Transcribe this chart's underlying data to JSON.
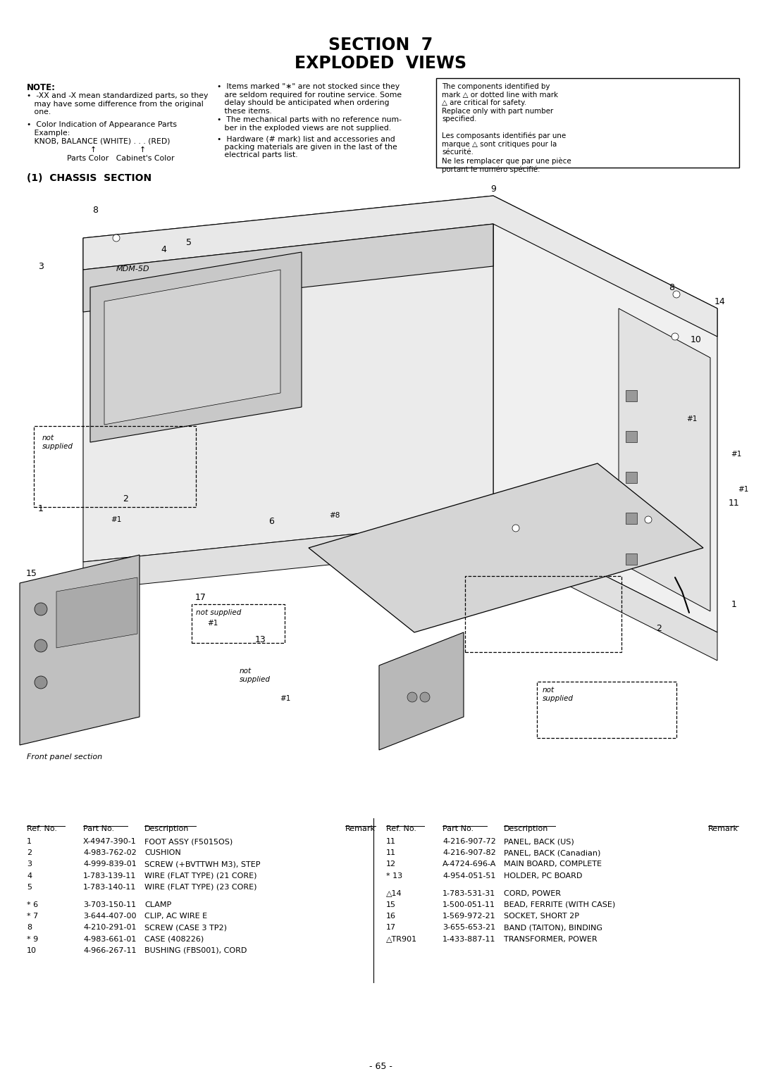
{
  "title_line1": "SECTION  7",
  "title_line2": "EXPLODED  VIEWS",
  "section_title": "(1)  CHASSIS  SECTION",
  "page_number": "- 65 -",
  "bg_color": "#ffffff",
  "text_color": "#000000",
  "parts_left": [
    [
      "1",
      "X-4947-390-1",
      "FOOT ASSY (F5015OS)",
      ""
    ],
    [
      "2",
      "4-983-762-02",
      "CUSHION",
      ""
    ],
    [
      "3",
      "4-999-839-01",
      "SCREW (+BVTTWH M3), STEP",
      ""
    ],
    [
      "4",
      "1-783-139-11",
      "WIRE (FLAT TYPE) (21 CORE)",
      ""
    ],
    [
      "5",
      "1-783-140-11",
      "WIRE (FLAT TYPE) (23 CORE)",
      ""
    ],
    [
      "",
      "",
      "",
      ""
    ],
    [
      "* 6",
      "3-703-150-11",
      "CLAMP",
      ""
    ],
    [
      "* 7",
      "3-644-407-00",
      "CLIP, AC WIRE E",
      ""
    ],
    [
      "8",
      "4-210-291-01",
      "SCREW (CASE 3 TP2)",
      ""
    ],
    [
      "* 9",
      "4-983-661-01",
      "CASE (408226)",
      ""
    ],
    [
      "10",
      "4-966-267-11",
      "BUSHING (FBS001), CORD",
      ""
    ]
  ],
  "parts_right": [
    [
      "11",
      "4-216-907-72",
      "PANEL, BACK (US)",
      ""
    ],
    [
      "11",
      "4-216-907-82",
      "PANEL, BACK (Canadian)",
      ""
    ],
    [
      "12",
      "A-4724-696-A",
      "MAIN BOARD, COMPLETE",
      ""
    ],
    [
      "* 13",
      "4-954-051-51",
      "HOLDER, PC BOARD",
      ""
    ],
    [
      "",
      "",
      "",
      ""
    ],
    [
      "△14",
      "1-783-531-31",
      "CORD, POWER",
      ""
    ],
    [
      "15",
      "1-500-051-11",
      "BEAD, FERRITE (WITH CASE)",
      ""
    ],
    [
      "16",
      "1-569-972-21",
      "SOCKET, SHORT 2P",
      ""
    ],
    [
      "17",
      "3-655-653-21",
      "BAND (TAITON), BINDING",
      ""
    ],
    [
      "△TR901",
      "1-433-887-11",
      "TRANSFORMER, POWER",
      ""
    ]
  ]
}
